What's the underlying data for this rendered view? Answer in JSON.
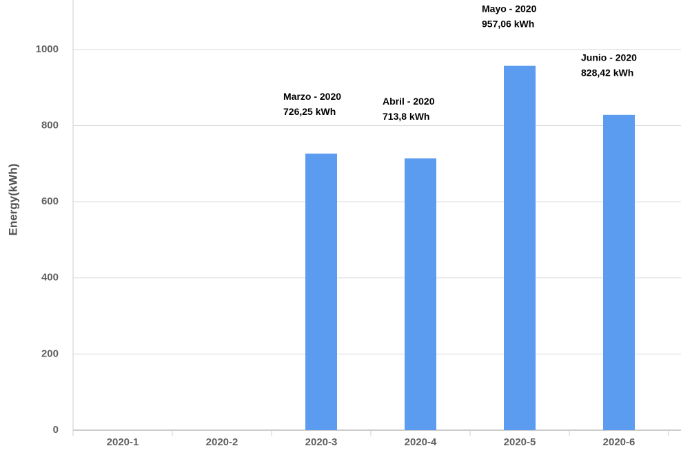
{
  "chart_data": {
    "type": "bar",
    "y_axis_label": "Energy(kWh)",
    "categories": [
      "2020-1",
      "2020-2",
      "2020-3",
      "2020-4",
      "2020-5",
      "2020-6"
    ],
    "values": [
      null,
      null,
      726.25,
      713.8,
      957.06,
      828.42
    ],
    "value_labels": [
      null,
      null,
      "726,25 kWh",
      "713,8 kWh",
      "957,06 kWh",
      "828,42 kWh"
    ],
    "label_titles": [
      null,
      null,
      "Marzo - 2020",
      "Abril - 2020",
      "Mayo - 2020",
      "Junio - 2020"
    ],
    "color": "#5b9cf0",
    "ylim": [
      0,
      1130
    ],
    "yticks": [
      0,
      200,
      400,
      600,
      800,
      1000
    ],
    "grid": true
  }
}
